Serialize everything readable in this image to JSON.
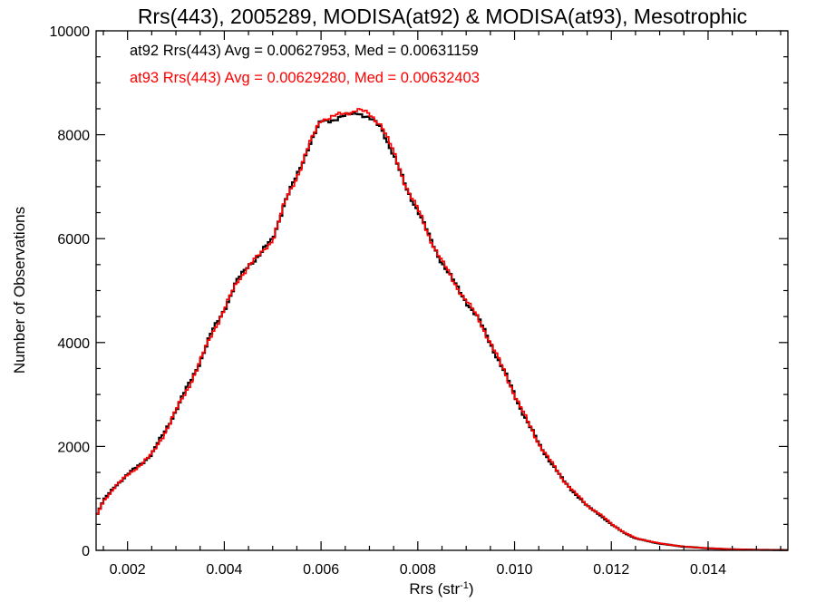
{
  "chart_data": {
    "type": "line",
    "title": "Rrs(443), 2005289, MODISA(at92) & MODISA(at93), Mesotrophic",
    "xlabel_main": "Rrs (str",
    "xlabel_sup": "-1",
    "xlabel_close": ")",
    "ylabel": "Number of Observations",
    "xlim": [
      0.00135,
      0.01565
    ],
    "ylim": [
      0,
      10000
    ],
    "x_ticks": [
      0.002,
      0.004,
      0.006,
      0.008,
      0.01,
      0.012,
      0.014
    ],
    "x_tick_labels": [
      "0.002",
      "0.004",
      "0.006",
      "0.008",
      "0.010",
      "0.012",
      "0.014"
    ],
    "y_ticks": [
      0,
      2000,
      4000,
      6000,
      8000,
      10000
    ],
    "y_tick_labels": [
      "0",
      "2000",
      "4000",
      "6000",
      "8000",
      "10000"
    ],
    "grid": false,
    "legend_position": "top-left",
    "series": [
      {
        "name": "at92 Rrs(443) Avg = 0.00627953, Med = 0.00631159",
        "color": "#000000",
        "x": [
          0.00135,
          0.0015,
          0.00175,
          0.002,
          0.00225,
          0.0025,
          0.00275,
          0.003,
          0.00325,
          0.0035,
          0.00375,
          0.004,
          0.00425,
          0.0045,
          0.00475,
          0.005,
          0.00525,
          0.0055,
          0.00575,
          0.006,
          0.00625,
          0.0065,
          0.00675,
          0.007,
          0.00725,
          0.0075,
          0.00775,
          0.008,
          0.00825,
          0.0085,
          0.00875,
          0.009,
          0.00925,
          0.0095,
          0.00975,
          0.01,
          0.01025,
          0.0105,
          0.01075,
          0.011,
          0.01125,
          0.0115,
          0.01175,
          0.012,
          0.01225,
          0.0125,
          0.013,
          0.0135,
          0.014,
          0.0145,
          0.015,
          0.01565
        ],
        "y": [
          650,
          950,
          1250,
          1450,
          1650,
          1850,
          2250,
          2700,
          3150,
          3650,
          4200,
          4650,
          5150,
          5500,
          5700,
          6000,
          6700,
          7200,
          7800,
          8250,
          8300,
          8350,
          8450,
          8300,
          8150,
          7600,
          7000,
          6550,
          6000,
          5550,
          5150,
          4800,
          4450,
          4000,
          3500,
          3000,
          2500,
          2050,
          1700,
          1350,
          1100,
          850,
          700,
          500,
          350,
          230,
          130,
          70,
          40,
          20,
          10,
          5
        ]
      },
      {
        "name": "at93 Rrs(443) Avg = 0.00629280, Med = 0.00632403",
        "color": "#ff0000",
        "x": [
          0.00135,
          0.0015,
          0.00175,
          0.002,
          0.00225,
          0.0025,
          0.00275,
          0.003,
          0.00325,
          0.0035,
          0.00375,
          0.004,
          0.00425,
          0.0045,
          0.00475,
          0.005,
          0.00525,
          0.0055,
          0.00575,
          0.006,
          0.00625,
          0.0065,
          0.00675,
          0.007,
          0.00725,
          0.0075,
          0.00775,
          0.008,
          0.00825,
          0.0085,
          0.00875,
          0.009,
          0.00925,
          0.0095,
          0.00975,
          0.01,
          0.01025,
          0.0105,
          0.01075,
          0.011,
          0.01125,
          0.0115,
          0.01175,
          0.012,
          0.01225,
          0.0125,
          0.013,
          0.0135,
          0.014,
          0.0145,
          0.015,
          0.01565
        ],
        "y": [
          640,
          940,
          1240,
          1440,
          1640,
          1840,
          2230,
          2680,
          3130,
          3630,
          4180,
          4640,
          5130,
          5490,
          5690,
          5990,
          6680,
          7190,
          7790,
          8300,
          8350,
          8400,
          8500,
          8380,
          8200,
          7650,
          7030,
          6560,
          6010,
          5560,
          5160,
          4810,
          4460,
          4010,
          3510,
          3010,
          2510,
          2060,
          1710,
          1360,
          1110,
          860,
          710,
          510,
          355,
          235,
          135,
          72,
          42,
          22,
          11,
          5
        ]
      }
    ]
  }
}
